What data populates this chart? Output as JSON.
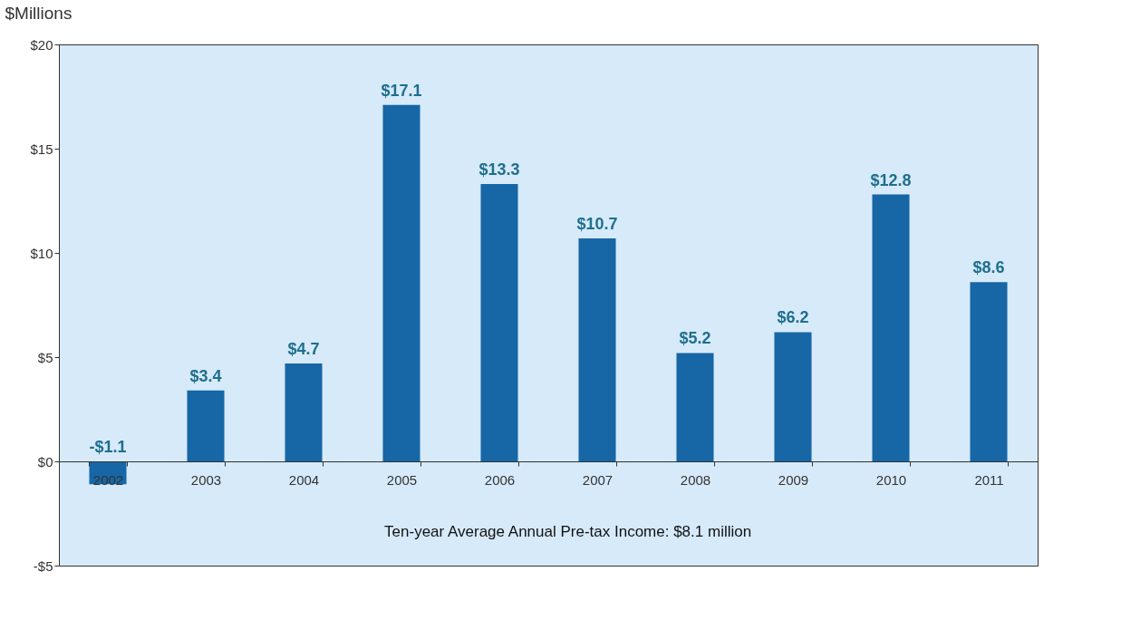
{
  "chart_data": {
    "type": "bar",
    "ylabel": "$Millions",
    "categories": [
      "2002",
      "2003",
      "2004",
      "2005",
      "2006",
      "2007",
      "2008",
      "2009",
      "2010",
      "2011"
    ],
    "values": [
      -1.1,
      3.4,
      4.7,
      17.1,
      13.3,
      10.7,
      5.2,
      6.2,
      12.8,
      8.6
    ],
    "value_labels": [
      "-$1.1",
      "$3.4",
      "$4.7",
      "$17.1",
      "$13.3",
      "$10.7",
      "$5.2",
      "$6.2",
      "$12.8",
      "$8.6"
    ],
    "color": "#1766a6",
    "ylim": [
      -5,
      20
    ],
    "yticks": [
      {
        "value": -5,
        "label": "-$5"
      },
      {
        "value": 0,
        "label": "$0"
      },
      {
        "value": 5,
        "label": "$5"
      },
      {
        "value": 10,
        "label": "$10"
      },
      {
        "value": 15,
        "label": "$15"
      },
      {
        "value": 20,
        "label": "$20"
      }
    ],
    "grid": false,
    "annotations": [
      "Ten-year Average Annual Pre-tax Income:  $8.1 million"
    ]
  }
}
